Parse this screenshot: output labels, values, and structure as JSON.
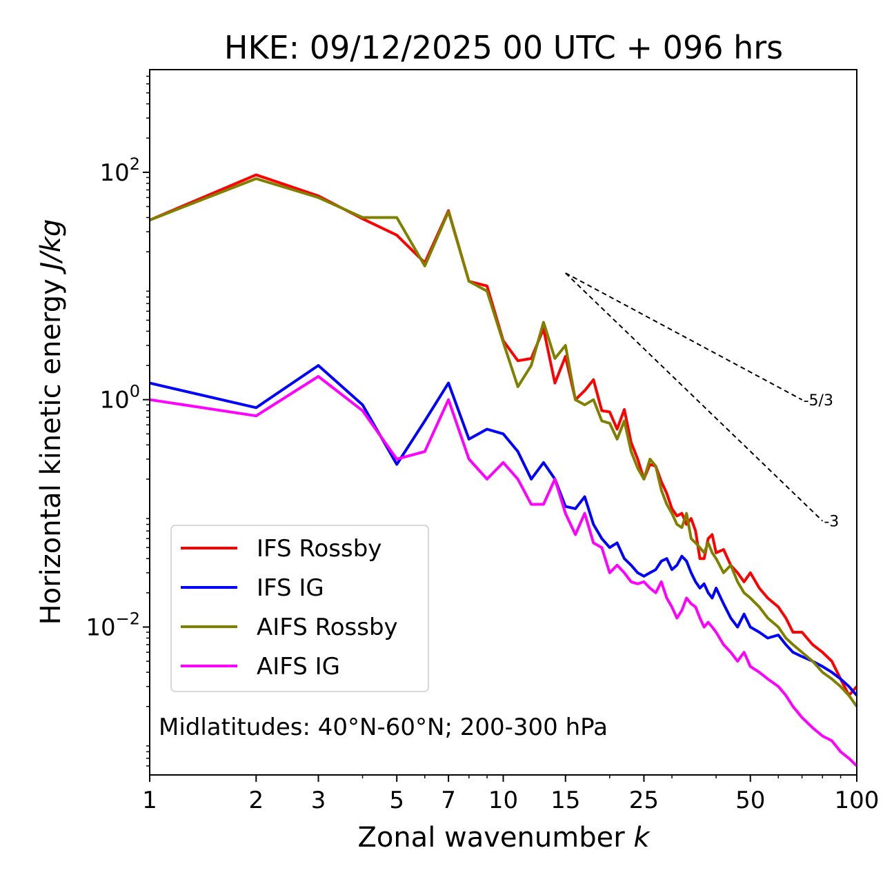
{
  "chart_data": {
    "type": "line",
    "title": "HKE: 09/12/2025 00 UTC + 096 hrs",
    "xlabel": "Zonal wavenumber",
    "xlabel_var": "k",
    "ylabel": "Horizontal kinetic energy",
    "ylabel_unit": "J/kg",
    "xscale": "log",
    "yscale": "log",
    "xlim": [
      1,
      100
    ],
    "ylim": [
      0.0005,
      800
    ],
    "x_ticks": [
      1,
      2,
      3,
      5,
      7,
      10,
      15,
      25,
      50,
      100
    ],
    "y_ticks": [
      {
        "value": 0.01,
        "base": "10",
        "exp": "−2"
      },
      {
        "value": 1,
        "base": "10",
        "exp": "0"
      },
      {
        "value": 100,
        "base": "10",
        "exp": "2"
      }
    ],
    "annotation": "Midlatitudes: 40°N-60°N; 200-300 hPa",
    "legend_position": "lower-left",
    "series": [
      {
        "name": "IFS Rossby",
        "color": "#ff0000",
        "x": [
          1,
          2,
          3,
          4,
          5,
          6,
          7,
          8,
          9,
          10,
          11,
          12,
          13,
          14,
          15,
          16,
          17,
          18,
          19,
          20,
          21,
          22,
          23,
          24,
          25,
          26,
          27,
          28,
          29,
          30,
          31,
          32,
          33,
          34,
          35,
          36,
          37,
          38,
          39,
          40,
          42,
          44,
          46,
          48,
          50,
          53,
          56,
          60,
          63,
          66,
          70,
          75,
          80,
          85,
          90,
          95,
          100
        ],
        "y": [
          38,
          95,
          62,
          39,
          28,
          16,
          46,
          11,
          10,
          3.3,
          2.2,
          2.3,
          4.2,
          1.4,
          2.4,
          1.0,
          1.2,
          1.5,
          0.8,
          0.78,
          0.55,
          0.82,
          0.42,
          0.3,
          0.2,
          0.27,
          0.26,
          0.19,
          0.15,
          0.11,
          0.095,
          0.1,
          0.08,
          0.09,
          0.07,
          0.04,
          0.04,
          0.06,
          0.065,
          0.045,
          0.048,
          0.035,
          0.03,
          0.025,
          0.03,
          0.022,
          0.018,
          0.015,
          0.012,
          0.009,
          0.009,
          0.007,
          0.006,
          0.005,
          0.0035,
          0.0025,
          0.003
        ]
      },
      {
        "name": "IFS IG",
        "color": "#0000ff",
        "x": [
          1,
          2,
          3,
          4,
          5,
          6,
          7,
          8,
          9,
          10,
          11,
          12,
          13,
          14,
          15,
          16,
          17,
          18,
          19,
          20,
          21,
          22,
          23,
          24,
          25,
          26,
          27,
          28,
          29,
          30,
          31,
          32,
          33,
          34,
          35,
          36,
          37,
          38,
          39,
          40,
          42,
          44,
          46,
          48,
          50,
          53,
          56,
          60,
          63,
          66,
          70,
          75,
          80,
          85,
          90,
          95,
          100
        ],
        "y": [
          1.4,
          0.85,
          2.0,
          0.9,
          0.27,
          0.65,
          1.4,
          0.45,
          0.55,
          0.5,
          0.35,
          0.2,
          0.28,
          0.2,
          0.115,
          0.11,
          0.14,
          0.08,
          0.06,
          0.05,
          0.055,
          0.04,
          0.035,
          0.03,
          0.028,
          0.03,
          0.032,
          0.038,
          0.04,
          0.032,
          0.035,
          0.042,
          0.038,
          0.03,
          0.025,
          0.022,
          0.024,
          0.02,
          0.018,
          0.022,
          0.016,
          0.012,
          0.01,
          0.013,
          0.01,
          0.009,
          0.008,
          0.0085,
          0.007,
          0.006,
          0.0055,
          0.005,
          0.0045,
          0.004,
          0.0035,
          0.003,
          0.0025
        ]
      },
      {
        "name": "AIFS Rossby",
        "color": "#808000",
        "x": [
          1,
          2,
          3,
          4,
          5,
          6,
          7,
          8,
          9,
          10,
          11,
          12,
          13,
          14,
          15,
          16,
          17,
          18,
          19,
          20,
          21,
          22,
          23,
          24,
          25,
          26,
          27,
          28,
          29,
          30,
          31,
          32,
          33,
          34,
          35,
          36,
          37,
          38,
          39,
          40,
          42,
          44,
          46,
          48,
          50,
          53,
          56,
          60,
          63,
          66,
          70,
          75,
          80,
          85,
          90,
          95,
          100
        ],
        "y": [
          38,
          88,
          60,
          40,
          40,
          15,
          45,
          11,
          9,
          3.2,
          1.3,
          2.0,
          4.8,
          2.3,
          3.0,
          1.0,
          0.9,
          1.0,
          0.65,
          0.62,
          0.45,
          0.65,
          0.35,
          0.25,
          0.2,
          0.3,
          0.26,
          0.16,
          0.12,
          0.1,
          0.08,
          0.075,
          0.1,
          0.06,
          0.055,
          0.05,
          0.045,
          0.055,
          0.045,
          0.04,
          0.03,
          0.035,
          0.025,
          0.02,
          0.018,
          0.015,
          0.012,
          0.01,
          0.008,
          0.007,
          0.006,
          0.005,
          0.004,
          0.0035,
          0.003,
          0.0025,
          0.002
        ]
      },
      {
        "name": "AIFS IG",
        "color": "#ff00ff",
        "x": [
          1,
          2,
          3,
          4,
          5,
          6,
          7,
          8,
          9,
          10,
          11,
          12,
          13,
          14,
          15,
          16,
          17,
          18,
          19,
          20,
          21,
          22,
          23,
          24,
          25,
          26,
          27,
          28,
          29,
          30,
          31,
          32,
          33,
          34,
          35,
          36,
          37,
          38,
          39,
          40,
          42,
          44,
          46,
          48,
          50,
          53,
          56,
          60,
          63,
          66,
          70,
          75,
          80,
          85,
          90,
          95,
          100
        ],
        "y": [
          1.0,
          0.72,
          1.6,
          0.8,
          0.3,
          0.35,
          1.0,
          0.3,
          0.2,
          0.28,
          0.2,
          0.12,
          0.12,
          0.2,
          0.1,
          0.065,
          0.1,
          0.055,
          0.05,
          0.03,
          0.035,
          0.03,
          0.025,
          0.024,
          0.025,
          0.022,
          0.02,
          0.025,
          0.018,
          0.015,
          0.012,
          0.014,
          0.018,
          0.016,
          0.015,
          0.012,
          0.01,
          0.011,
          0.01,
          0.009,
          0.007,
          0.006,
          0.005,
          0.006,
          0.0045,
          0.004,
          0.0035,
          0.003,
          0.0025,
          0.002,
          0.0016,
          0.0013,
          0.0011,
          0.001,
          0.0008,
          0.0007,
          0.0006
        ]
      }
    ],
    "reference_lines": [
      {
        "label": "-5/3",
        "slope": -1.6667,
        "x": [
          15,
          70
        ],
        "y_start": 13
      },
      {
        "label": "-3",
        "slope": -3,
        "x": [
          15,
          80
        ],
        "y_start": 13
      }
    ]
  }
}
